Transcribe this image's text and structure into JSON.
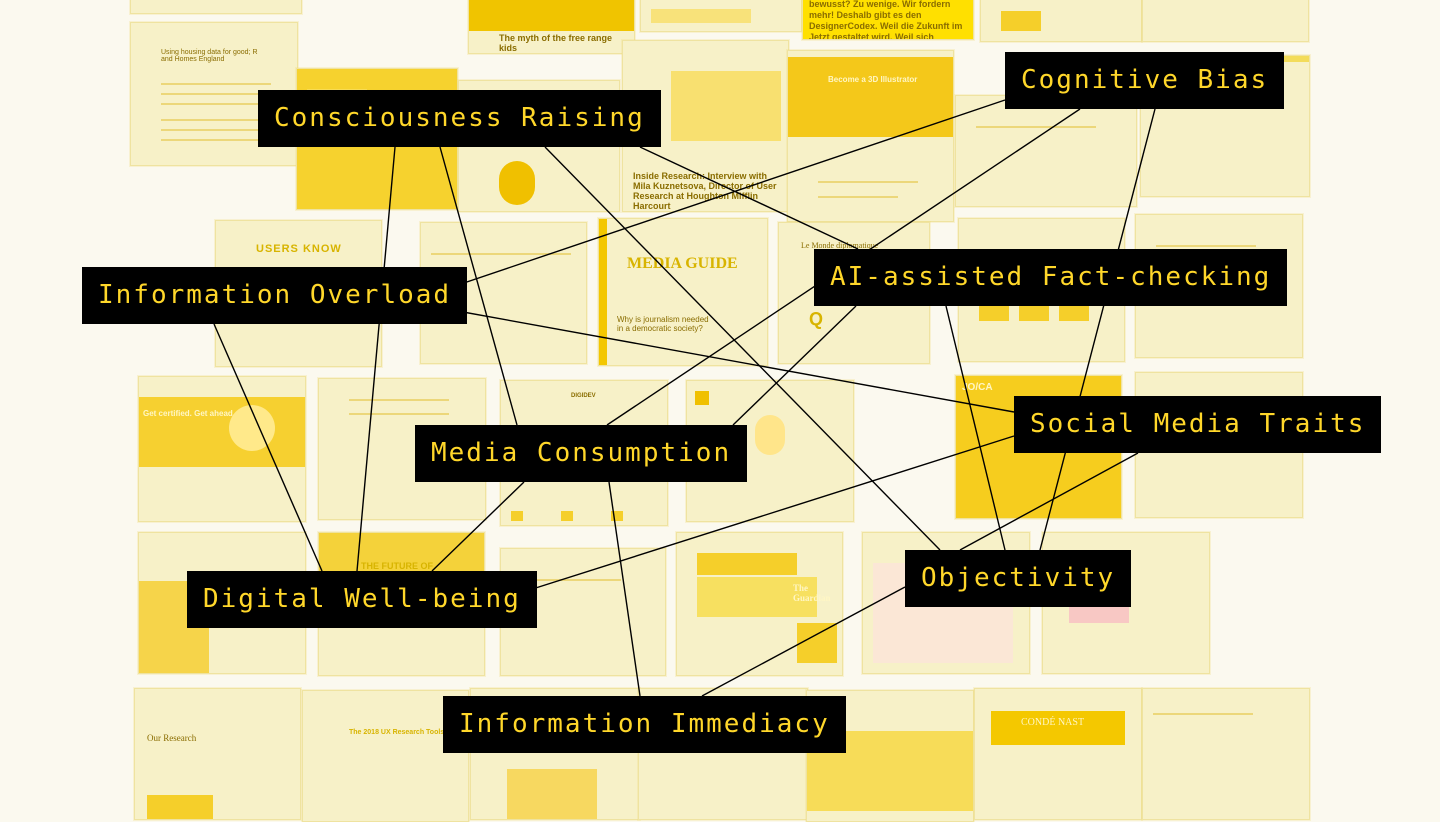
{
  "background_thumbnails": {
    "t1": "The myth of the free range kids",
    "t2": "Become a 3D Illustrator",
    "t3": "Using housing data for good; R and Homes England",
    "t4": "Inside Research: Interview with Mila Kuznetsova, Director of User Research at Houghton Mifflin Harcourt",
    "t5": "USERS KNOW",
    "t6": "MEDIA GUIDE",
    "t7": "Why is journalism needed in a democratic society?",
    "t8": "Le Monde diplomatique",
    "t9": "Get certified. Get ahead.",
    "t10": "JO/CA",
    "t11": "THE FUTURE OF",
    "t12": "The Guardian",
    "t13": "Our Research",
    "t14": "The 2018 UX Research Tools Map",
    "t15": "CONDÉ NAST",
    "t16": "DIGIDEV",
    "t17": "bewusst? Zu wenige. Wir fordern mehr! Deshalb gibt es den DesignerCodex. Weil die Zukunft im Jetzt gestaltet wird. Weil sich"
  },
  "nodes": {
    "consciousness_raising": "Consciousness Raising",
    "cognitive_bias": "Cognitive Bias",
    "information_overload": "Information Overload",
    "ai_fact_checking": "AI-assisted Fact-checking",
    "social_media_traits": "Social Media Traits",
    "media_consumption": "Media Consumption",
    "objectivity": "Objectivity",
    "digital_well_being": "Digital Well-being",
    "information_immediacy": "Information Immediacy"
  },
  "edges": [
    [
      "consciousness_raising",
      "digital_well_being"
    ],
    [
      "consciousness_raising",
      "media_consumption"
    ],
    [
      "consciousness_raising",
      "objectivity"
    ],
    [
      "consciousness_raising",
      "ai_fact_checking"
    ],
    [
      "cognitive_bias",
      "information_overload"
    ],
    [
      "cognitive_bias",
      "media_consumption"
    ],
    [
      "cognitive_bias",
      "objectivity"
    ],
    [
      "information_overload",
      "digital_well_being"
    ],
    [
      "information_overload",
      "social_media_traits"
    ],
    [
      "ai_fact_checking",
      "objectivity"
    ],
    [
      "ai_fact_checking",
      "information_immediacy"
    ],
    [
      "social_media_traits",
      "digital_well_being"
    ],
    [
      "social_media_traits",
      "objectivity"
    ],
    [
      "media_consumption",
      "digital_well_being"
    ],
    [
      "media_consumption",
      "information_immediacy"
    ],
    [
      "objectivity",
      "information_immediacy"
    ]
  ],
  "colors": {
    "node_bg": "#000000",
    "node_text": "#ffd72a",
    "edge": "#000000",
    "page_bg": "#fbf9ef",
    "thumb_accent": "#f5cf2a"
  }
}
